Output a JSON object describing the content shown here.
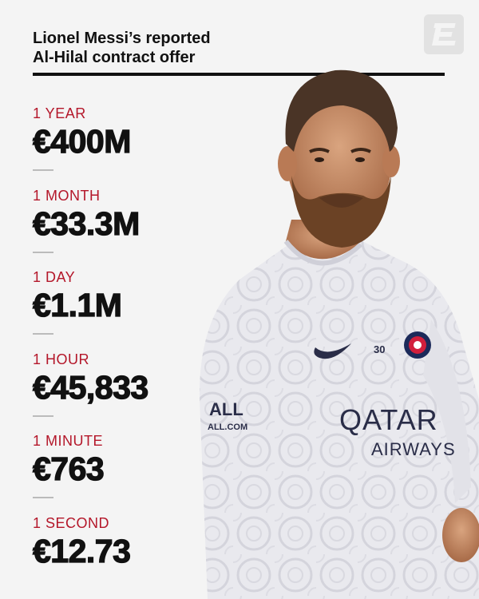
{
  "header": {
    "title_line1": "Lionel Messi’s reported",
    "title_line2": "Al-Hilal contract offer"
  },
  "stats": [
    {
      "label": "1 YEAR",
      "value": "€400M"
    },
    {
      "label": "1 MONTH",
      "value": "€33.3M"
    },
    {
      "label": "1 DAY",
      "value": "€1.1M"
    },
    {
      "label": "1 HOUR",
      "value": "€45,833"
    },
    {
      "label": "1 MINUTE",
      "value": "€763"
    },
    {
      "label": "1 SECOND",
      "value": "€12.73"
    }
  ],
  "shirt": {
    "sponsor_line1": "QATAR",
    "sponsor_line2": "AIRWAYS",
    "sleeve_line1": "ALL",
    "sleeve_line2": "ALL.COM",
    "number": "30"
  },
  "colors": {
    "accent": "#b4172a",
    "text": "#111111",
    "background": "#f4f4f4",
    "shirt_navy": "#2a2d48"
  },
  "icons": {
    "logo": "espn-e-logo-icon"
  }
}
